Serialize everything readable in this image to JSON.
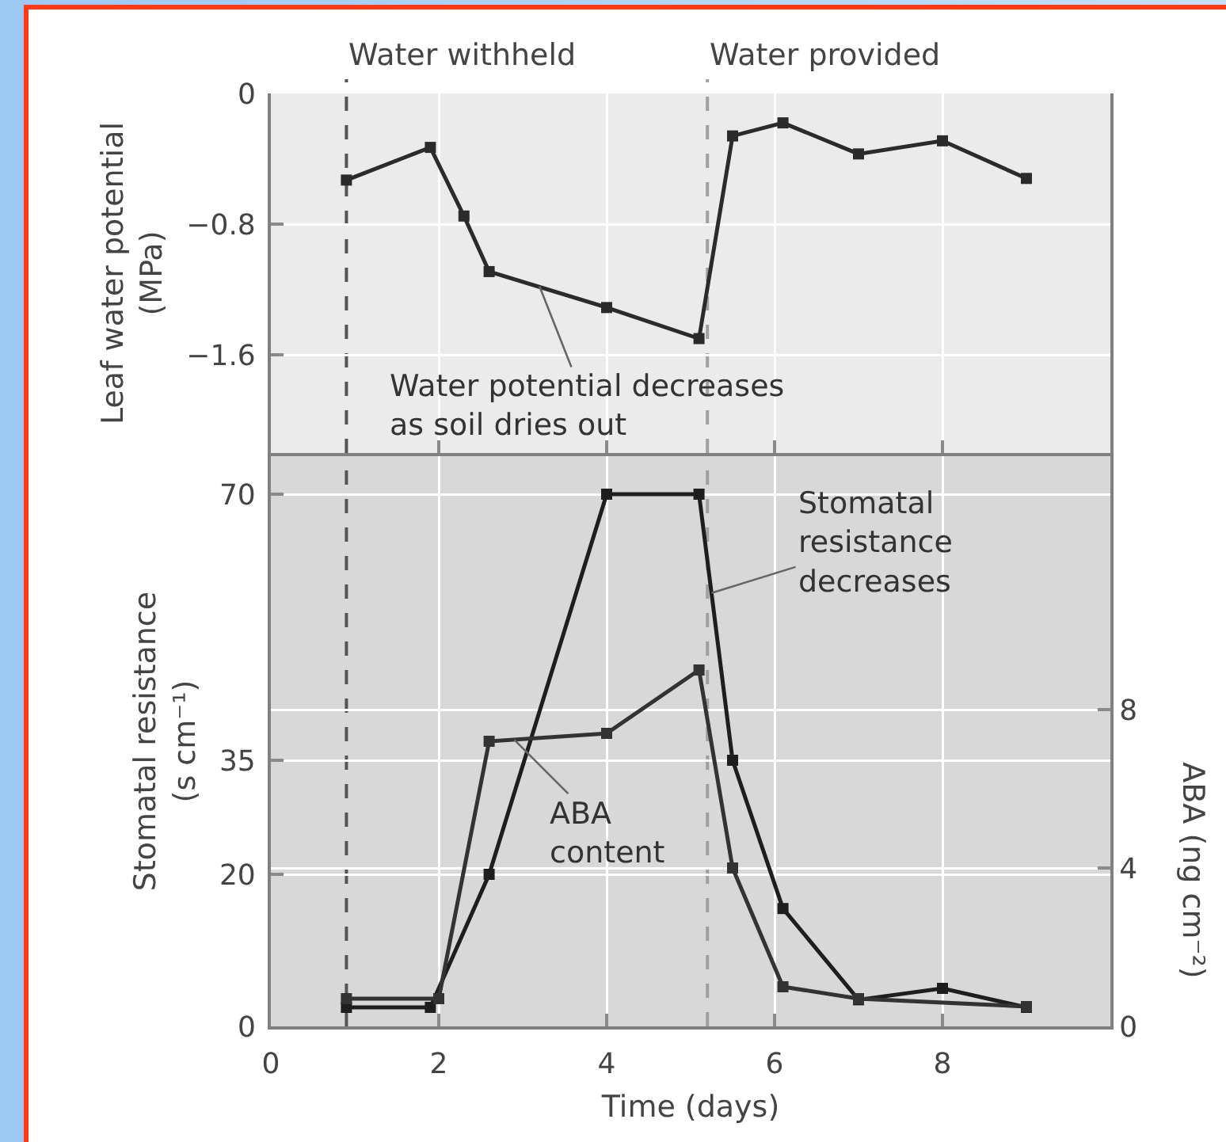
{
  "chart_data": [
    {
      "type": "line",
      "ylabel": "Leaf water potential\n(MPa)",
      "x": [
        0.9,
        1.9,
        2.3,
        2.6,
        4.0,
        5.1,
        5.5,
        6.1,
        7.0,
        8.0,
        9.0
      ],
      "xlim": [
        0,
        10
      ],
      "xticks": [
        0,
        2,
        4,
        6,
        8
      ],
      "ylim": [
        -2.2,
        0
      ],
      "yticks": [
        0,
        {
          "value": -0.8,
          "label": "−0.8"
        },
        {
          "value": -1.6,
          "label": "−1.6"
        }
      ],
      "series": [
        {
          "color": "#2b2b2b",
          "values": [
            -0.53,
            -0.33,
            -0.75,
            -1.09,
            -1.31,
            -1.5,
            -0.26,
            -0.18,
            -0.37,
            -0.29,
            -0.52
          ]
        }
      ],
      "marker": "square",
      "grid": true,
      "tick_labels": "y",
      "ref_lines": [
        {
          "axis": "x",
          "value": 0.9,
          "label": "Water withheld",
          "color": "#555555",
          "line_style": "dashed"
        },
        {
          "axis": "x",
          "value": 5.2,
          "label": "Water provided",
          "color": "#a0a0a0",
          "line_style": "dashed"
        }
      ],
      "annotations": [
        {
          "text": "Water potential decreases\nas soil dries out",
          "x": 3.2,
          "y": -1.18
        }
      ]
    },
    {
      "type": "line",
      "xlabel": "Time (days)",
      "ylabel": "Stomatal resistance\n(s cm⁻¹)",
      "y2label": "ABA (ng cm⁻²)",
      "xlim": [
        0,
        10
      ],
      "xticks": [
        0,
        2,
        4,
        6,
        8
      ],
      "ylim": [
        0,
        75
      ],
      "yticks": [
        0,
        20,
        35,
        70
      ],
      "y2lim": [
        0,
        14.4
      ],
      "y2ticks": [
        0,
        4,
        8
      ],
      "series": [
        {
          "color": "#1e1e1e",
          "x": [
            0.9,
            1.9,
            2.6,
            4.0,
            5.1,
            5.5,
            6.1,
            7.0,
            8.0,
            9.0
          ],
          "values": [
            2.5,
            2.5,
            20,
            70,
            70,
            35,
            15.5,
            3.5,
            5,
            2.5
          ]
        },
        {
          "color": "#333333",
          "axis": "y2",
          "x": [
            0.9,
            2.0,
            2.6,
            4.0,
            5.1,
            5.5,
            6.1,
            7.0,
            9.0
          ],
          "values": [
            0.7,
            0.7,
            7.2,
            7.4,
            9.0,
            4.0,
            1.0,
            0.7,
            0.5
          ]
        }
      ],
      "marker": "square",
      "grid": true,
      "ref_lines": [
        {
          "axis": "x",
          "value": 0.9,
          "color": "#555555",
          "line_style": "dashed"
        },
        {
          "axis": "x",
          "value": 5.2,
          "color": "#a0a0a0",
          "line_style": "dashed"
        }
      ],
      "annotations": [
        {
          "text": "Stomatal\nresistance\ndecreases",
          "x": 5.25,
          "y": 57
        },
        {
          "text": "ABA\ncontent",
          "x": 2.9,
          "y": 37.7
        }
      ]
    }
  ]
}
